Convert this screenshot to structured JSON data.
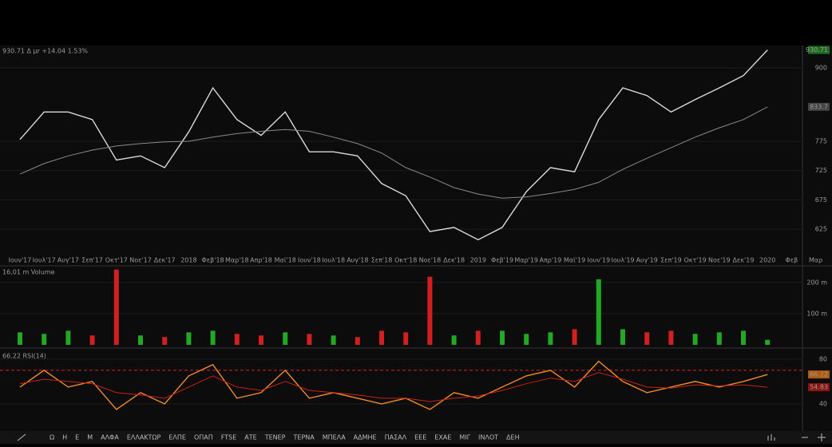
{
  "chart_data": [
    {
      "type": "line",
      "title": "930.71 Δ μr +14.04 1.53%",
      "categories": [
        "Ιουν'17",
        "Ιουλ'17",
        "Αυγ'17",
        "Σεπ'17",
        "Οκτ'17",
        "Νοε'17",
        "Δεκ'17",
        "2018",
        "Φεβ'18",
        "Μαρ'18",
        "Απρ'18",
        "Μαϊ'18",
        "Ιουν'18",
        "Ιουλ'18",
        "Αυγ'18",
        "Σεπ'18",
        "Οκτ'18",
        "Νοε'18",
        "Δεκ'18",
        "2019",
        "Φεβ'19",
        "Μαρ'19",
        "Απρ'19",
        "Μαϊ'19",
        "Ιουν'19",
        "Ιουλ'19",
        "Αυγ'19",
        "Σεπ'19",
        "Οκτ'19",
        "Νοε'19",
        "Δεκ'19",
        "2020",
        "Φεβ",
        "Μαρ"
      ],
      "series": [
        {
          "color": "#d9d9d9",
          "values": [
            778,
            825,
            825,
            812,
            743,
            750,
            730,
            791,
            866,
            812,
            785,
            825,
            757,
            757,
            750,
            703,
            682,
            621,
            628,
            607,
            628,
            689,
            730,
            723,
            812,
            866,
            853,
            825,
            846,
            866,
            887,
            930.71,
            null,
            null
          ]
        },
        {
          "color": "#8a8a8a",
          "values": [
            719,
            737,
            750,
            760,
            767,
            771,
            774,
            775,
            782,
            788,
            792,
            795,
            792,
            782,
            771,
            755,
            730,
            714,
            696,
            685,
            678,
            680,
            686,
            693,
            705,
            727,
            746,
            764,
            782,
            798,
            812,
            833.7,
            null,
            null
          ]
        }
      ],
      "ylim": [
        583,
        937
      ],
      "yticks": [
        625,
        675,
        725,
        775,
        900
      ],
      "grid": true
    },
    {
      "type": "bar",
      "title": "16,01 m Volume",
      "up_color": "#22a822",
      "down_color": "#d21f1f",
      "values": [
        40,
        35,
        45,
        30,
        241,
        30,
        25,
        40,
        45,
        35,
        30,
        40,
        35,
        30,
        25,
        45,
        40,
        218,
        30,
        45,
        45,
        35,
        40,
        50,
        210,
        50,
        40,
        45,
        35,
        40,
        45,
        16.01,
        null,
        null
      ],
      "ylim": [
        0,
        248
      ],
      "yticks": [
        {
          "value": 100,
          "label": "100 m"
        },
        {
          "value": 200,
          "label": "200 m"
        }
      ]
    },
    {
      "type": "line",
      "title": "66.22 RSI(14)",
      "series": [
        {
          "color": "#f08a24",
          "values": [
            55,
            70,
            55,
            60,
            35,
            50,
            40,
            65,
            75,
            45,
            50,
            70,
            45,
            50,
            45,
            40,
            45,
            35,
            50,
            45,
            55,
            65,
            70,
            55,
            78,
            60,
            50,
            55,
            60,
            55,
            60,
            66.22,
            null,
            null
          ]
        },
        {
          "color": "#c8201a",
          "values": [
            58,
            62,
            60,
            58,
            50,
            48,
            45,
            55,
            65,
            55,
            52,
            60,
            52,
            50,
            48,
            45,
            45,
            42,
            45,
            47,
            52,
            58,
            63,
            60,
            68,
            62,
            55,
            54,
            57,
            56,
            57,
            54.83,
            null,
            null
          ]
        }
      ],
      "level": 70,
      "ylim": [
        19.3,
        87
      ],
      "yticks": [
        40,
        80
      ]
    }
  ],
  "toolbar": {
    "tabs": [
      "Ω",
      "Η",
      "Ε",
      "Μ",
      "ΑΛΦΑ",
      "ΕΛΛΑΚΤΩΡ",
      "ΕΛΠΕ",
      "ΟΠΑΠ",
      "FTSE",
      "ΑΤΕ",
      "ΤΕΝΕΡ",
      "ΤΕΡΝΑ",
      "ΜΠΕΛΑ",
      "ΑΔΜΗΕ",
      "ΠΑΣΑΛ",
      "ΕΕΕ",
      "ΕΧΑΕ",
      "ΜΙΓ",
      "ΙΝΛΟΤ",
      "ΔΕΗ"
    ]
  }
}
